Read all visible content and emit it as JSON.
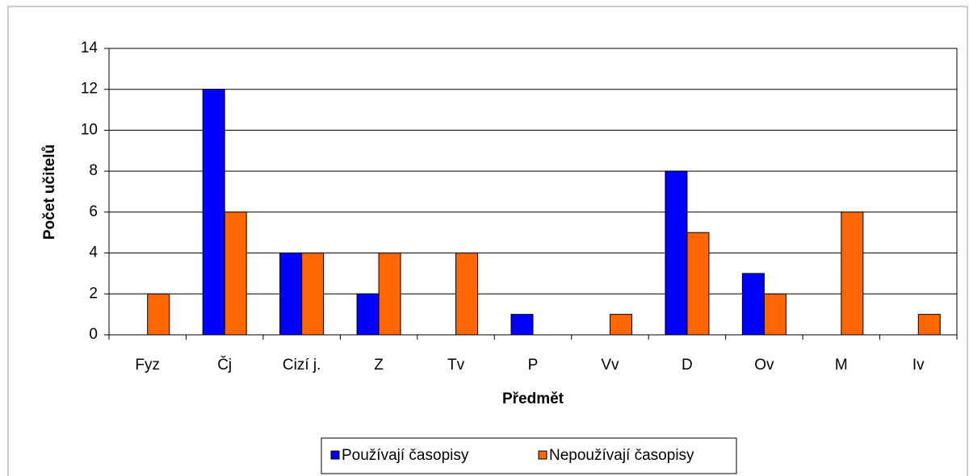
{
  "chart_data": {
    "type": "bar",
    "categories": [
      "Fyz",
      "Čj",
      "Cizí j.",
      "Z",
      "Tv",
      "P",
      "Vv",
      "D",
      "Ov",
      "M",
      "Iv"
    ],
    "series": [
      {
        "name": "Používají časopisy",
        "color": "#0000ff",
        "values": [
          0,
          12,
          4,
          2,
          0,
          1,
          0,
          8,
          3,
          0,
          0
        ]
      },
      {
        "name": "Nepoužívají časopisy",
        "color": "#ff6600",
        "values": [
          2,
          6,
          4,
          4,
          4,
          0,
          1,
          5,
          2,
          6,
          1
        ]
      }
    ],
    "x_label": "Předmět",
    "y_label": "Počet učitelů",
    "ylim": [
      0,
      14
    ],
    "yticks": [
      0,
      2,
      4,
      6,
      8,
      10,
      12,
      14
    ],
    "grid": true,
    "legend": "bottom"
  }
}
